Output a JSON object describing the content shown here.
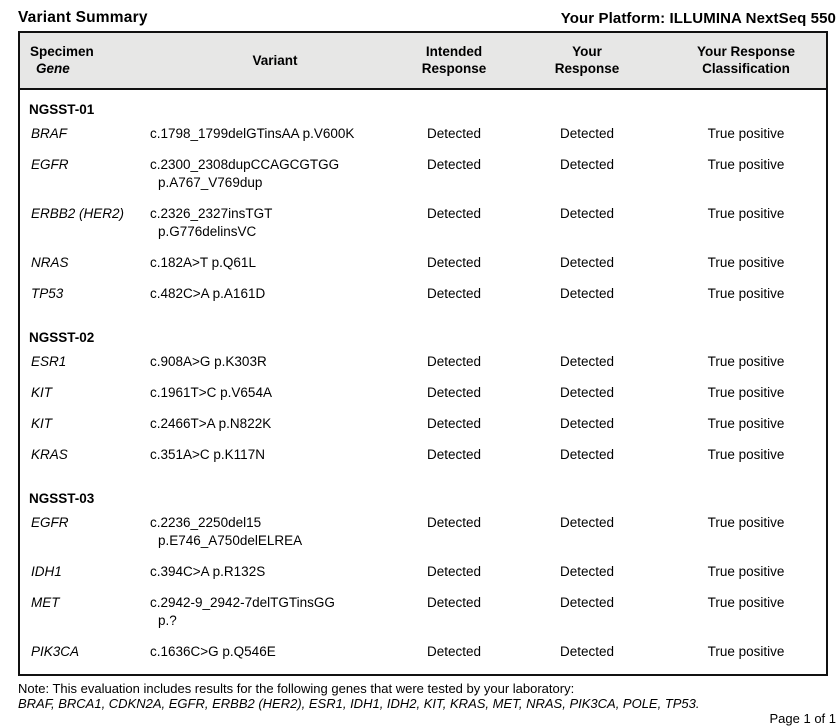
{
  "header": {
    "title": "Variant Summary",
    "platform_label": "Your Platform: ILLUMINA NextSeq 550"
  },
  "table": {
    "header": {
      "col1_line1": "Specimen",
      "col1_line2": "Gene",
      "col2": "Variant",
      "col3_line1": "Intended",
      "col3_line2": "Response",
      "col4_line1": "Your",
      "col4_line2": "Response",
      "col5_line1": "Your Response",
      "col5_line2": "Classification"
    },
    "sections": [
      {
        "name": "NGSST-01",
        "rows": [
          {
            "gene": "BRAF",
            "variant_lines": [
              "c.1798_1799delGTinsAA p.V600K"
            ],
            "intended": "Detected",
            "your_response": "Detected",
            "classification": "True positive"
          },
          {
            "gene": "EGFR",
            "variant_lines": [
              "c.2300_2308dupCCAGCGTGG",
              "p.A767_V769dup"
            ],
            "intended": "Detected",
            "your_response": "Detected",
            "classification": "True positive"
          },
          {
            "gene": "ERBB2 (HER2)",
            "variant_lines": [
              "c.2326_2327insTGT",
              "p.G776delinsVC"
            ],
            "intended": "Detected",
            "your_response": "Detected",
            "classification": "True positive"
          },
          {
            "gene": "NRAS",
            "variant_lines": [
              "c.182A>T p.Q61L"
            ],
            "intended": "Detected",
            "your_response": "Detected",
            "classification": "True positive"
          },
          {
            "gene": "TP53",
            "variant_lines": [
              "c.482C>A p.A161D"
            ],
            "intended": "Detected",
            "your_response": "Detected",
            "classification": "True positive"
          }
        ]
      },
      {
        "name": "NGSST-02",
        "rows": [
          {
            "gene": "ESR1",
            "variant_lines": [
              "c.908A>G p.K303R"
            ],
            "intended": "Detected",
            "your_response": "Detected",
            "classification": "True positive"
          },
          {
            "gene": "KIT",
            "variant_lines": [
              "c.1961T>C p.V654A"
            ],
            "intended": "Detected",
            "your_response": "Detected",
            "classification": "True positive"
          },
          {
            "gene": "KIT",
            "variant_lines": [
              "c.2466T>A p.N822K"
            ],
            "intended": "Detected",
            "your_response": "Detected",
            "classification": "True positive"
          },
          {
            "gene": "KRAS",
            "variant_lines": [
              "c.351A>C p.K117N"
            ],
            "intended": "Detected",
            "your_response": "Detected",
            "classification": "True positive"
          }
        ]
      },
      {
        "name": "NGSST-03",
        "rows": [
          {
            "gene": "EGFR",
            "variant_lines": [
              "c.2236_2250del15",
              "p.E746_A750delELREA"
            ],
            "intended": "Detected",
            "your_response": "Detected",
            "classification": "True positive"
          },
          {
            "gene": "IDH1",
            "variant_lines": [
              "c.394C>A p.R132S"
            ],
            "intended": "Detected",
            "your_response": "Detected",
            "classification": "True positive"
          },
          {
            "gene": "MET",
            "variant_lines": [
              "c.2942-9_2942-7delTGTinsGG",
              "p.?"
            ],
            "intended": "Detected",
            "your_response": "Detected",
            "classification": "True positive"
          },
          {
            "gene": "PIK3CA",
            "variant_lines": [
              "c.1636C>G p.Q546E"
            ],
            "intended": "Detected",
            "your_response": "Detected",
            "classification": "True positive"
          }
        ]
      }
    ]
  },
  "footer": {
    "note_line1": "Note: This evaluation includes results for the following genes that were tested by your laboratory:",
    "note_line2": "BRAF, BRCA1, CDKN2A, EGFR, ERBB2 (HER2), ESR1, IDH1, IDH2, KIT, KRAS, MET, NRAS, PIK3CA, POLE, TP53.",
    "page_label": "Page 1 of 1"
  },
  "colors": {
    "table_header_bg": "#e7e7e6",
    "table_border": "#111111",
    "text": "#000000"
  }
}
